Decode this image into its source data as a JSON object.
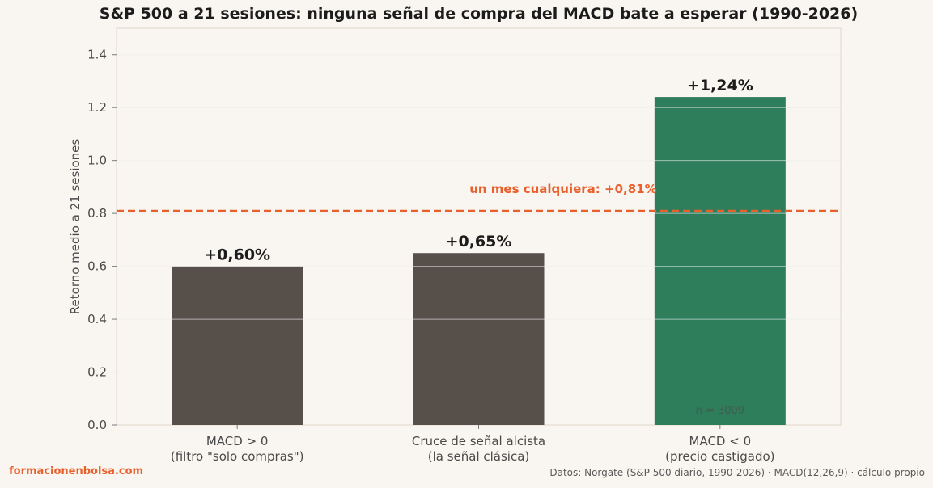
{
  "chart_data": {
    "type": "bar",
    "title": "S&P 500 a 21 sesiones: ninguna señal de compra del MACD bate a esperar (1990-2026)",
    "ylabel": "Retorno medio a 21 sesiones",
    "xlabel": "",
    "ylim": [
      0,
      1.5
    ],
    "yticks": [
      "0.0",
      "0.2",
      "0.4",
      "0.6",
      "0.8",
      "1.0",
      "1.2",
      "1.4"
    ],
    "ytick_values": [
      0,
      0.2,
      0.4,
      0.6,
      0.8,
      1.0,
      1.2,
      1.4
    ],
    "grid": "horizontal",
    "categories": [
      [
        "MACD > 0",
        "(filtro \"solo compras\")"
      ],
      [
        "Cruce de señal alcista",
        "(la señal clásica)"
      ],
      [
        "MACD < 0",
        "(precio castigado)"
      ]
    ],
    "values": [
      0.6,
      0.65,
      1.24
    ],
    "data_labels": [
      "+0,60%",
      "+0,65%",
      "+1,24%"
    ],
    "bar_colors": [
      "#574f4a",
      "#574f4a",
      "#2e7d5b"
    ],
    "reference_line": {
      "value": 0.81,
      "label": "un mes cualquiera: +0,81%",
      "color": "#e8602c"
    },
    "annotations": [
      {
        "category_index": 2,
        "text": "n = 3009"
      }
    ]
  },
  "footer": {
    "brand": "formacionenbolsa.com",
    "source": "Datos: Norgate (S&P 500 diario, 1990-2026) · MACD(12,26,9) · cálculo propio"
  },
  "colors": {
    "background": "#f9f6f1",
    "accent": "#e8602c",
    "grid": "#e6e0d6",
    "text": "#4a4a4a"
  }
}
